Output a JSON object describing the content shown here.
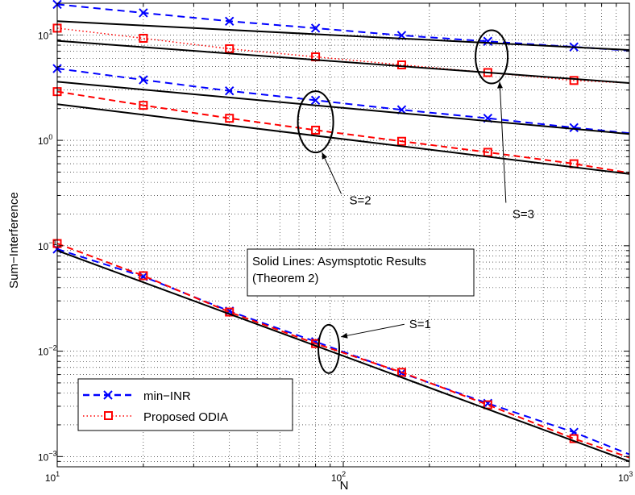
{
  "chart_data": {
    "type": "line",
    "xlabel": "N",
    "ylabel": "Sum−Interference",
    "xscale": "log",
    "yscale": "log",
    "xlim": [
      10,
      1000
    ],
    "ylim": [
      0.0008,
      20
    ],
    "grid": true,
    "x": [
      10,
      20,
      40,
      80,
      160,
      320,
      640,
      1000
    ],
    "x_tick_labels": [
      {
        "base": "10",
        "exp": "1"
      },
      {
        "base": "10",
        "exp": "2"
      },
      {
        "base": "10",
        "exp": "3"
      }
    ],
    "y_tick_labels": [
      {
        "base": "10",
        "exp": "1"
      },
      {
        "base": "10",
        "exp": "0"
      },
      {
        "base": "10",
        "exp": "−1"
      },
      {
        "base": "10",
        "exp": "−2"
      },
      {
        "base": "10",
        "exp": "−3"
      }
    ],
    "series": [
      {
        "group": "S=3",
        "style": "minINR",
        "color": "#0000ff",
        "values": [
          19.5,
          16.2,
          13.5,
          11.6,
          9.9,
          8.7,
          7.7,
          7.1
        ]
      },
      {
        "group": "S=3",
        "style": "ODIA",
        "color": "#ff0000",
        "values": [
          11.6,
          9.3,
          7.4,
          6.2,
          5.2,
          4.4,
          3.7,
          3.5
        ]
      },
      {
        "group": "S=3",
        "style": "asym",
        "color": "#000000",
        "values": [
          13.5,
          null,
          null,
          null,
          null,
          null,
          null,
          7.2
        ]
      },
      {
        "group": "S=3",
        "style": "asym",
        "color": "#000000",
        "values": [
          8.8,
          null,
          null,
          null,
          null,
          null,
          null,
          3.5
        ]
      },
      {
        "group": "S=2",
        "style": "minINR",
        "color": "#0000ff",
        "values": [
          4.8,
          3.75,
          2.95,
          2.4,
          1.95,
          1.62,
          1.32,
          1.17
        ]
      },
      {
        "group": "S=2",
        "style": "ODIA",
        "color": "#ff0000",
        "values": [
          2.9,
          2.15,
          1.62,
          1.25,
          0.98,
          0.77,
          0.6,
          0.49
        ]
      },
      {
        "group": "S=2",
        "style": "asym",
        "color": "#000000",
        "values": [
          3.6,
          null,
          null,
          null,
          null,
          null,
          null,
          1.15
        ]
      },
      {
        "group": "S=2",
        "style": "asym",
        "color": "#000000",
        "values": [
          2.2,
          null,
          null,
          null,
          null,
          null,
          null,
          0.48
        ]
      },
      {
        "group": "S=1",
        "style": "minINR",
        "color": "#0000ff",
        "values": [
          0.093,
          0.051,
          0.024,
          0.0123,
          0.0062,
          0.0032,
          0.0017,
          0.00105
        ]
      },
      {
        "group": "S=1",
        "style": "ODIA",
        "color": "#ff0000",
        "values": [
          0.105,
          0.052,
          0.0235,
          0.0118,
          0.0063,
          0.0031,
          0.00148,
          0.00098
        ]
      },
      {
        "group": "S=1",
        "style": "asym",
        "color": "#000000",
        "values": [
          0.09,
          null,
          null,
          null,
          null,
          null,
          null,
          0.0009
        ]
      }
    ],
    "legend": {
      "placement": "bottom-left",
      "entries": [
        {
          "label": "min−INR",
          "style": "minINR",
          "color": "#0000ff"
        },
        {
          "label": "Proposed ODIA",
          "style": "ODIA",
          "color": "#ff0000"
        }
      ]
    },
    "textbox": {
      "line1": "Solid Lines: Asymsptotic Results",
      "line2": "(Theorem 2)"
    },
    "annotations": [
      {
        "text": "S=1",
        "ellipse_x": 89,
        "ellipse_y": 0.0105,
        "label_x": 170,
        "label_y": 0.018
      },
      {
        "text": "S=2",
        "ellipse_x": 80,
        "ellipse_y": 1.5,
        "label_x": 105,
        "label_y": 0.27
      },
      {
        "text": "S=3",
        "ellipse_x": 330,
        "ellipse_y": 6.2,
        "label_x": 390,
        "label_y": 0.2
      }
    ]
  }
}
